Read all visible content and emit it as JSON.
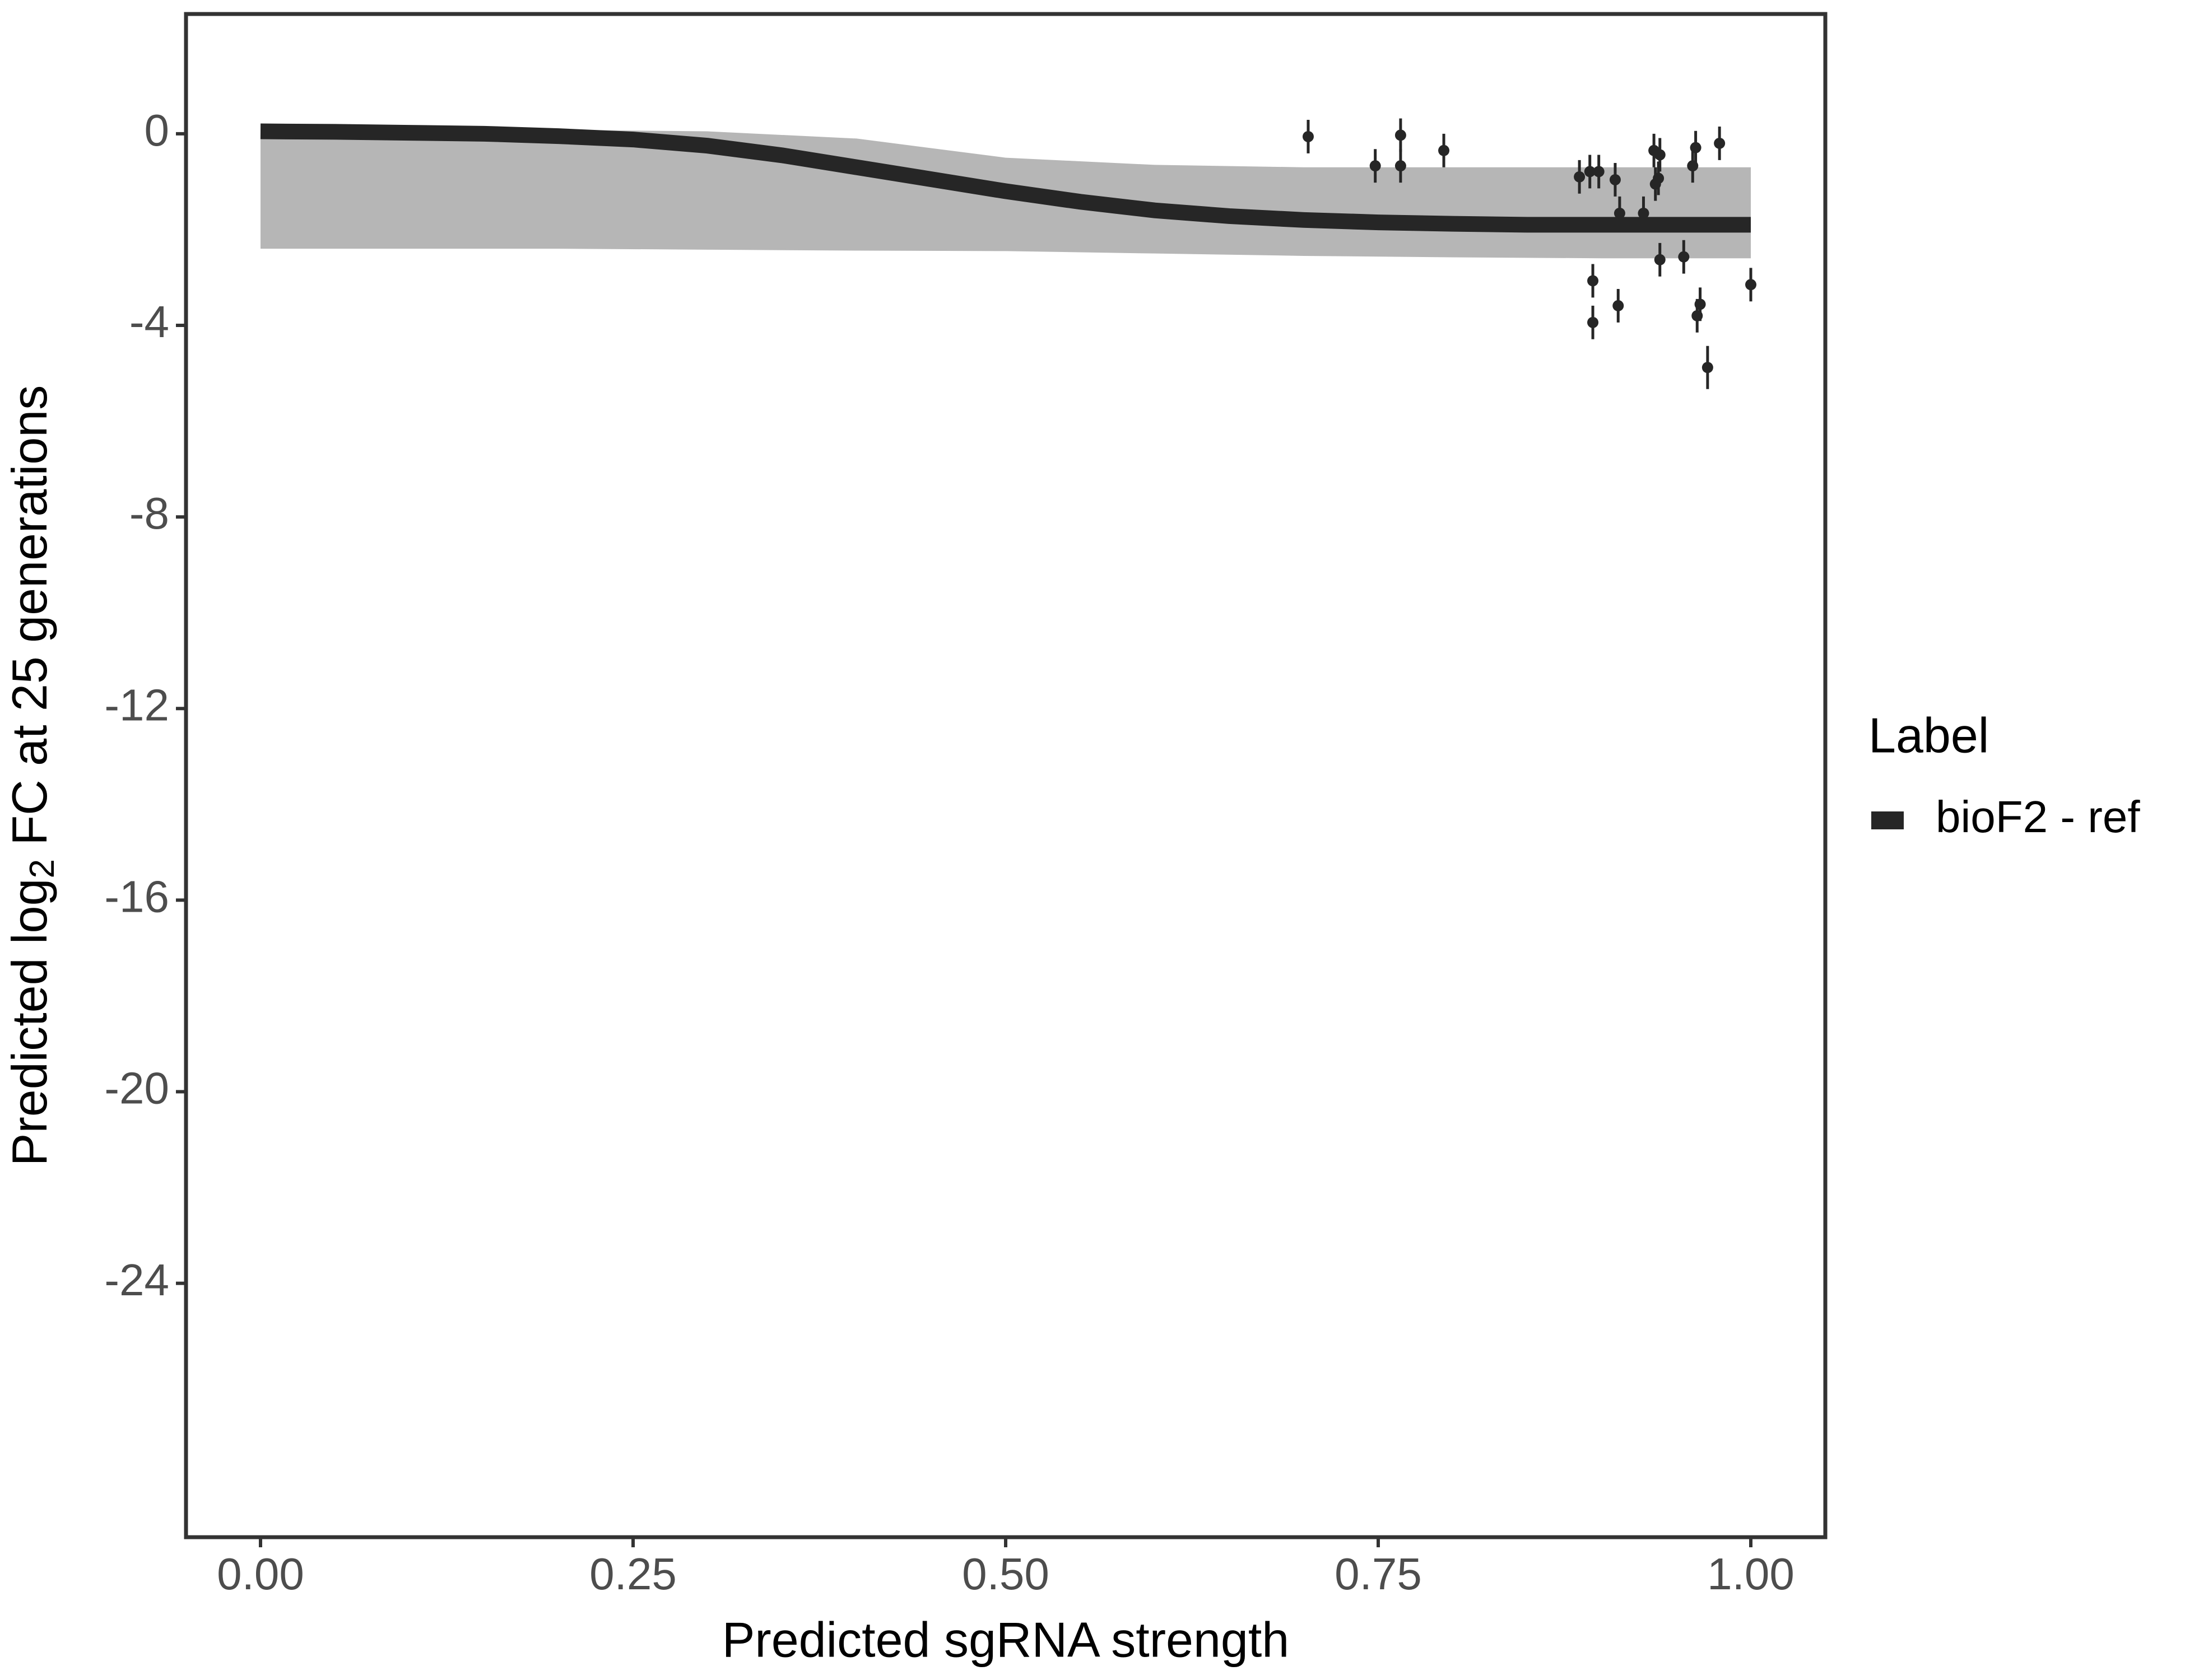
{
  "chart_data": {
    "type": "line",
    "x_label": "Predicted sgRNA strength",
    "y_label": {
      "before": "Predicted  log",
      "sub": "2",
      "after": " FC at 25 generations"
    },
    "legend_title": "Label",
    "xlim": [
      -0.05,
      1.05
    ],
    "ylim": [
      -29.3,
      2.5
    ],
    "xticks": [
      {
        "value": 0,
        "label": "0.00"
      },
      {
        "value": 0.25,
        "label": "0.25"
      },
      {
        "value": 0.5,
        "label": "0.50"
      },
      {
        "value": 0.75,
        "label": "0.75"
      },
      {
        "value": 1,
        "label": "1.00"
      }
    ],
    "yticks": [
      0,
      -4,
      -8,
      -12,
      -16,
      -20,
      -24
    ],
    "band": {
      "color": "#a9a9a9",
      "x": [
        0,
        0.1,
        0.2,
        0.3,
        0.4,
        0.5,
        0.6,
        0.7,
        0.8,
        0.9,
        1.0
      ],
      "upper": [
        0.1,
        0.1,
        0.08,
        0.05,
        -0.1,
        -0.5,
        -0.65,
        -0.7,
        -0.7,
        -0.7,
        -0.7
      ],
      "lower": [
        -2.4,
        -2.4,
        -2.4,
        -2.42,
        -2.44,
        -2.45,
        -2.5,
        -2.55,
        -2.58,
        -2.6,
        -2.6
      ]
    },
    "series": [
      {
        "name": "bioF2 - ref",
        "color": "#262626",
        "x": [
          0,
          0.05,
          0.1,
          0.15,
          0.2,
          0.25,
          0.3,
          0.35,
          0.4,
          0.45,
          0.5,
          0.55,
          0.6,
          0.65,
          0.7,
          0.75,
          0.8,
          0.85,
          0.9,
          0.95,
          1.0
        ],
        "values": [
          0.05,
          0.04,
          0.02,
          0,
          -0.05,
          -0.12,
          -0.25,
          -0.45,
          -0.7,
          -0.95,
          -1.2,
          -1.42,
          -1.6,
          -1.72,
          -1.8,
          -1.85,
          -1.88,
          -1.9,
          -1.9,
          -1.9,
          -1.9
        ]
      }
    ],
    "points": {
      "color": "#262626",
      "x": [
        0.703,
        0.748,
        0.765,
        0.765,
        0.794,
        0.885,
        0.892,
        0.898,
        0.894,
        0.894,
        0.909,
        0.911,
        0.912,
        0.928,
        0.935,
        0.939,
        0.936,
        0.938,
        0.939,
        0.955,
        0.961,
        0.963,
        0.964,
        0.966,
        0.971,
        0.979,
        1.0
      ],
      "values": [
        -0.06,
        -0.67,
        -0.03,
        -0.67,
        -0.35,
        -0.9,
        -0.79,
        -0.79,
        -3.07,
        -3.94,
        -0.96,
        -3.59,
        -1.66,
        -1.66,
        -0.35,
        -0.44,
        -1.05,
        -0.93,
        -2.63,
        -2.57,
        -0.67,
        -0.29,
        -3.8,
        -3.56,
        -4.88,
        -0.2,
        -3.15
      ],
      "errors": [
        0.35,
        0.35,
        0.35,
        0.35,
        0.35,
        0.35,
        0.35,
        0.35,
        0.35,
        0.35,
        0.35,
        0.35,
        0.35,
        0.35,
        0.35,
        0.35,
        0.35,
        0.35,
        0.35,
        0.35,
        0.35,
        0.35,
        0.35,
        0.35,
        0.45,
        0.35,
        0.35
      ]
    }
  }
}
